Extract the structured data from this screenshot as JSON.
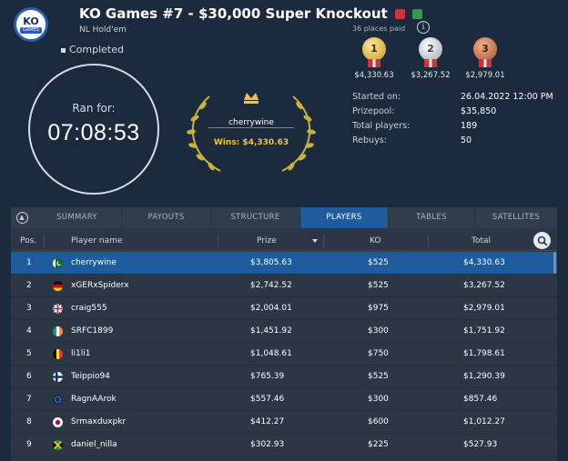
{
  "header": {
    "logo_text": "KO",
    "logo_sub": "GAMES",
    "title": "KO Games #7 - $30,000 Super Knockout",
    "subtitle": "NL Hold'em",
    "places_paid": "36 places paid",
    "status": "Completed"
  },
  "clock": {
    "label": "Ran for:",
    "time": "07:08:53"
  },
  "winner": {
    "name": "cherrywine",
    "wins": "Wins: $4,330.63"
  },
  "medals": [
    {
      "rank": "1",
      "amount": "$4,330.63"
    },
    {
      "rank": "2",
      "amount": "$3,267.52"
    },
    {
      "rank": "3",
      "amount": "$2,979.01"
    }
  ],
  "info": [
    {
      "label": "Started on:",
      "value": "26.04.2022   12:00 PM"
    },
    {
      "label": "Prizepool:",
      "value": "$35,850"
    },
    {
      "label": "Total players:",
      "value": "189"
    },
    {
      "label": "Rebuys:",
      "value": "50"
    }
  ],
  "tabs": [
    "SUMMARY",
    "PAYOUTS",
    "STRUCTURE",
    "PLAYERS",
    "TABLES",
    "SATELLITES"
  ],
  "active_tab": "PLAYERS",
  "columns": {
    "pos": "Pos.",
    "name": "Player name",
    "prize": "Prize",
    "ko": "KO",
    "total": "Total"
  },
  "players": [
    {
      "pos": "1",
      "name": "cherrywine",
      "prize": "$3,805.63",
      "ko": "$525",
      "total": "$4,330.63",
      "flag": "pk"
    },
    {
      "pos": "2",
      "name": "xGERxSpiderx",
      "prize": "$2,742.52",
      "ko": "$525",
      "total": "$3,267.52",
      "flag": "de"
    },
    {
      "pos": "3",
      "name": "craig555",
      "prize": "$2,004.01",
      "ko": "$975",
      "total": "$2,979.01",
      "flag": "gb"
    },
    {
      "pos": "4",
      "name": "SRFC1899",
      "prize": "$1,451.92",
      "ko": "$300",
      "total": "$1,751.92",
      "flag": "ie"
    },
    {
      "pos": "5",
      "name": "li1li1",
      "prize": "$1,048.61",
      "ko": "$750",
      "total": "$1,798.61",
      "flag": "be"
    },
    {
      "pos": "6",
      "name": "Teippio94",
      "prize": "$765.39",
      "ko": "$525",
      "total": "$1,290.39",
      "flag": "fi"
    },
    {
      "pos": "7",
      "name": "RagnAArok",
      "prize": "$557.46",
      "ko": "$300",
      "total": "$857.46",
      "flag": "eu"
    },
    {
      "pos": "8",
      "name": "Srmaxduxpkr",
      "prize": "$412.27",
      "ko": "$600",
      "total": "$1,012.27",
      "flag": "jp"
    },
    {
      "pos": "9",
      "name": "daniel_nilla",
      "prize": "$302.93",
      "ko": "$225",
      "total": "$527.93",
      "flag": "jm"
    }
  ],
  "colors": {
    "accent": "#1f5c9e",
    "gold": "#f2c43d",
    "background": "#1b2a3d"
  }
}
